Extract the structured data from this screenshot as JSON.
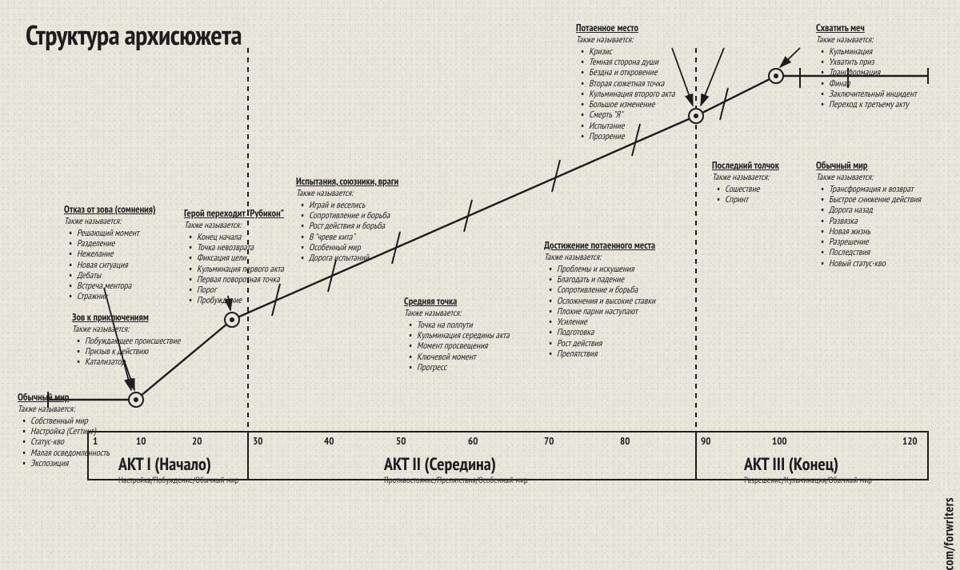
{
  "title": "Структура архисюжета",
  "side_text": "com/forwriters",
  "colors": {
    "ink": "#1d1d1d",
    "bg": "#e8e5db"
  },
  "scale": {
    "ticks": [
      1,
      10,
      20,
      30,
      40,
      50,
      60,
      70,
      80,
      90,
      100,
      120
    ]
  },
  "acts": [
    {
      "label": "АКТ I (Начало)",
      "sub": "Настройка/Побуждение/Обычный мир"
    },
    {
      "label": "АКТ II (Середина)",
      "sub": "Противостояние/Препятствия/Особенный мир"
    },
    {
      "label": "АКТ III (Конец)",
      "sub": "Разрешение/Кульминация/Обычный мир"
    }
  ],
  "aka": "Также называется:",
  "nodes": {
    "ordinary": {
      "hd": "Обычный мир",
      "items": [
        "Собственный мир",
        "Настройка (Сеттинг)",
        "Статус-кво",
        "Малая осведомленность",
        "Экспозиция"
      ]
    },
    "call": {
      "hd": "Зов к приключениям",
      "items": [
        "Побуждающее происшествие",
        "Призыв к действию",
        "Катализатор"
      ]
    },
    "refusal": {
      "hd": "Отказ от зова (сомнения)",
      "items": [
        "Решающий момент",
        "Разделение",
        "Нежелание",
        "Новая ситуация",
        "Дебаты",
        "Встреча ментора",
        "Стражник"
      ]
    },
    "rubicon": {
      "hd": "Герой переходит \"Рубикон\"",
      "items": [
        "Конец начала",
        "Точка невозврата",
        "Фиксация цели",
        "Кульминация первого акта",
        "Первая поворотная точка",
        "Порог",
        "Пробуждение"
      ]
    },
    "tests": {
      "hd": "Испытания, союзники, враги",
      "items": [
        "Играй и веселись",
        "Сопротивление и борьба",
        "Рост действия и борьба",
        "В \"чреве кита\"",
        "Особенный мир",
        "Дорога испытаний"
      ]
    },
    "midpoint": {
      "hd": "Средняя точка",
      "items": [
        "Точка на полпути",
        "Кульминация середины акта",
        "Момент просвещения",
        "Ключевой момент",
        "Прогресс"
      ]
    },
    "approach": {
      "hd": "Достижение потаенного места",
      "items": [
        "Проблемы и искушения",
        "Благодать и падение",
        "Сопротивление и борьба",
        "Осложнения и высокие ставки",
        "Плохие парни наступают",
        "Усиление",
        "Подготовка",
        "Рост действия",
        "Препятствия"
      ]
    },
    "innermost": {
      "hd": "Потаенное место",
      "items": [
        "Кризис",
        "Темная сторона души",
        "Бездна и откровение",
        "Вторая сюжетная точка",
        "Кульминация второго акта",
        "Большое изменение",
        "Смерть \"Я\"",
        "Испытание",
        "Прозрение"
      ]
    },
    "push": {
      "hd": "Последний толчок",
      "items": [
        "Сошествие",
        "Спринт"
      ]
    },
    "sword": {
      "hd": "Схватить меч",
      "items": [
        "Кульминация",
        "Ухватить приз",
        "Трансформация",
        "Финал",
        "Заключительный инцидент",
        "Переход к третьему акту"
      ]
    },
    "return": {
      "hd": "Обычный мир",
      "items": [
        "Трансформация и возврат",
        "Быстрое снижение действия",
        "Дорога назад",
        "Развязка",
        "Новая жизнь",
        "Разрешение",
        "Последствия",
        "Новый статус-кво"
      ]
    }
  }
}
